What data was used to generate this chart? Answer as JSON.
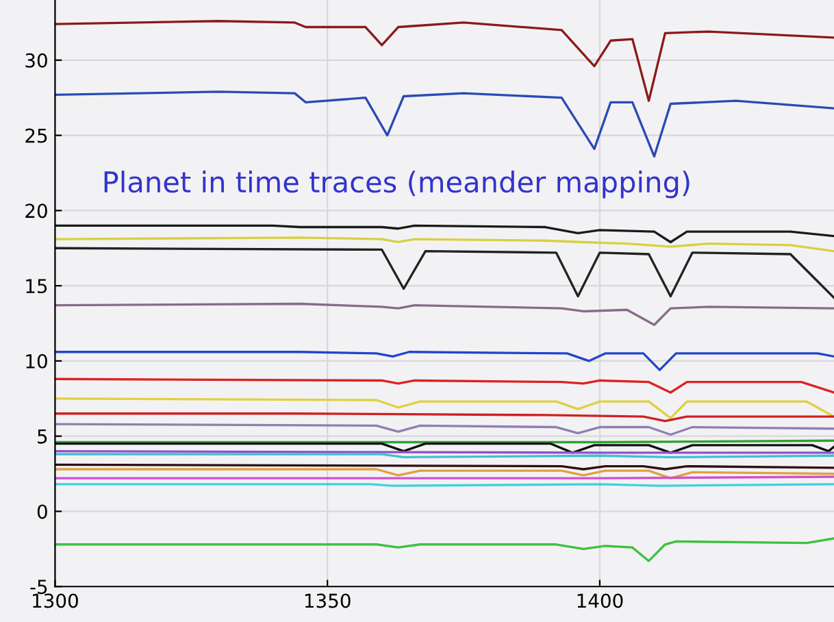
{
  "chart_data": {
    "type": "line",
    "annotations": [
      "Planet in time traces (meander mapping)"
    ],
    "xlim": [
      1300,
      1443
    ],
    "ylim": [
      -5,
      34
    ],
    "xticks": [
      1300,
      1350,
      1400
    ],
    "yticks": [
      -5,
      0,
      5,
      10,
      15,
      20,
      25,
      30
    ],
    "grid": true,
    "marker": "none",
    "line_style": "solid",
    "series": [
      {
        "color": "#8b1a1a",
        "x": [
          1300,
          1330,
          1344,
          1346,
          1357,
          1360,
          1363,
          1375,
          1393,
          1399,
          1402,
          1406,
          1409,
          1412,
          1420,
          1443
        ],
        "values": [
          32.4,
          32.6,
          32.5,
          32.2,
          32.2,
          31.0,
          32.2,
          32.5,
          32.0,
          29.6,
          31.3,
          31.4,
          27.3,
          31.8,
          31.9,
          31.5
        ]
      },
      {
        "color": "#2a4bb5",
        "x": [
          1300,
          1330,
          1344,
          1346,
          1357,
          1361,
          1364,
          1375,
          1393,
          1399,
          1402,
          1406,
          1410,
          1413,
          1425,
          1443
        ],
        "values": [
          27.7,
          27.9,
          27.8,
          27.2,
          27.5,
          25.0,
          27.6,
          27.8,
          27.5,
          24.1,
          27.2,
          27.2,
          23.6,
          27.1,
          27.3,
          26.8
        ]
      },
      {
        "color": "#1a1a1a",
        "x": [
          1300,
          1340,
          1345,
          1360,
          1363,
          1366,
          1390,
          1396,
          1400,
          1410,
          1413,
          1416,
          1435,
          1443
        ],
        "values": [
          19.0,
          19.0,
          18.9,
          18.9,
          18.8,
          19.0,
          18.9,
          18.5,
          18.7,
          18.6,
          17.9,
          18.6,
          18.6,
          18.3
        ]
      },
      {
        "color": "#d8d040",
        "x": [
          1300,
          1345,
          1360,
          1363,
          1366,
          1390,
          1397,
          1405,
          1413,
          1420,
          1435,
          1443
        ],
        "values": [
          18.1,
          18.2,
          18.1,
          17.9,
          18.1,
          18.0,
          17.9,
          17.8,
          17.6,
          17.8,
          17.7,
          17.3
        ]
      },
      {
        "color": "#222222",
        "x": [
          1300,
          1360,
          1364,
          1368,
          1392,
          1396,
          1400,
          1409,
          1413,
          1417,
          1435,
          1443
        ],
        "values": [
          17.5,
          17.4,
          14.8,
          17.3,
          17.2,
          14.3,
          17.2,
          17.1,
          14.3,
          17.2,
          17.1,
          14.2
        ]
      },
      {
        "color": "#8a6a8a",
        "x": [
          1300,
          1345,
          1360,
          1363,
          1366,
          1393,
          1397,
          1405,
          1410,
          1413,
          1420,
          1443
        ],
        "values": [
          13.7,
          13.8,
          13.6,
          13.5,
          13.7,
          13.5,
          13.3,
          13.4,
          12.4,
          13.5,
          13.6,
          13.5
        ]
      },
      {
        "color": "#2244cc",
        "x": [
          1300,
          1345,
          1359,
          1362,
          1365,
          1394,
          1398,
          1401,
          1408,
          1411,
          1414,
          1440,
          1443
        ],
        "values": [
          10.6,
          10.6,
          10.5,
          10.3,
          10.6,
          10.5,
          10.0,
          10.5,
          10.5,
          9.4,
          10.5,
          10.5,
          10.3
        ]
      },
      {
        "color": "#dd2222",
        "x": [
          1300,
          1360,
          1363,
          1366,
          1393,
          1397,
          1400,
          1409,
          1413,
          1416,
          1437,
          1443
        ],
        "values": [
          8.8,
          8.7,
          8.5,
          8.7,
          8.6,
          8.5,
          8.7,
          8.6,
          7.9,
          8.6,
          8.6,
          7.9
        ]
      },
      {
        "color": "#e0d040",
        "x": [
          1300,
          1359,
          1363,
          1367,
          1392,
          1396,
          1400,
          1409,
          1413,
          1416,
          1438,
          1443
        ],
        "values": [
          7.5,
          7.4,
          6.9,
          7.3,
          7.3,
          6.8,
          7.3,
          7.3,
          6.2,
          7.3,
          7.3,
          6.3
        ]
      },
      {
        "color": "#d02020",
        "x": [
          1300,
          1345,
          1390,
          1408,
          1412,
          1416,
          1443
        ],
        "values": [
          6.5,
          6.5,
          6.4,
          6.3,
          6.0,
          6.3,
          6.3
        ]
      },
      {
        "color": "#9080b0",
        "x": [
          1300,
          1359,
          1363,
          1367,
          1392,
          1396,
          1400,
          1409,
          1413,
          1417,
          1443
        ],
        "values": [
          5.8,
          5.7,
          5.3,
          5.7,
          5.6,
          5.2,
          5.6,
          5.6,
          5.1,
          5.6,
          5.5
        ]
      },
      {
        "color": "#30a030",
        "x": [
          1300,
          1400,
          1443
        ],
        "values": [
          4.6,
          4.6,
          4.7
        ]
      },
      {
        "color": "#111111",
        "x": [
          1300,
          1360,
          1364,
          1368,
          1391,
          1395,
          1399,
          1409,
          1413,
          1417,
          1439,
          1442,
          1443
        ],
        "values": [
          4.5,
          4.5,
          4.0,
          4.5,
          4.5,
          3.9,
          4.4,
          4.4,
          3.9,
          4.4,
          4.4,
          4.0,
          4.3
        ]
      },
      {
        "color": "#9050d0",
        "x": [
          1300,
          1400,
          1443
        ],
        "values": [
          4.0,
          3.9,
          3.9
        ]
      },
      {
        "color": "#40c0d0",
        "x": [
          1300,
          1360,
          1364,
          1400,
          1413,
          1443
        ],
        "values": [
          3.8,
          3.8,
          3.6,
          3.7,
          3.6,
          3.7
        ]
      },
      {
        "color": "#301010",
        "x": [
          1300,
          1393,
          1397,
          1401,
          1408,
          1412,
          1416,
          1443
        ],
        "values": [
          3.1,
          3.0,
          2.8,
          3.0,
          3.0,
          2.8,
          3.0,
          2.9
        ]
      },
      {
        "color": "#e0a040",
        "x": [
          1300,
          1359,
          1363,
          1367,
          1393,
          1397,
          1401,
          1409,
          1413,
          1417,
          1443
        ],
        "values": [
          2.8,
          2.8,
          2.4,
          2.7,
          2.7,
          2.4,
          2.7,
          2.7,
          2.2,
          2.6,
          2.5
        ]
      },
      {
        "color": "#d050d0",
        "x": [
          1300,
          1400,
          1443
        ],
        "values": [
          2.2,
          2.2,
          2.3
        ]
      },
      {
        "color": "#40d0e0",
        "x": [
          1300,
          1358,
          1362,
          1400,
          1411,
          1443
        ],
        "values": [
          1.8,
          1.8,
          1.7,
          1.8,
          1.7,
          1.8
        ]
      },
      {
        "color": "#40c040",
        "x": [
          1300,
          1359,
          1363,
          1367,
          1392,
          1397,
          1401,
          1406,
          1409,
          1412,
          1414,
          1438,
          1443
        ],
        "values": [
          -2.2,
          -2.2,
          -2.4,
          -2.2,
          -2.2,
          -2.5,
          -2.3,
          -2.4,
          -3.3,
          -2.2,
          -2.0,
          -2.1,
          -1.8
        ]
      }
    ]
  }
}
